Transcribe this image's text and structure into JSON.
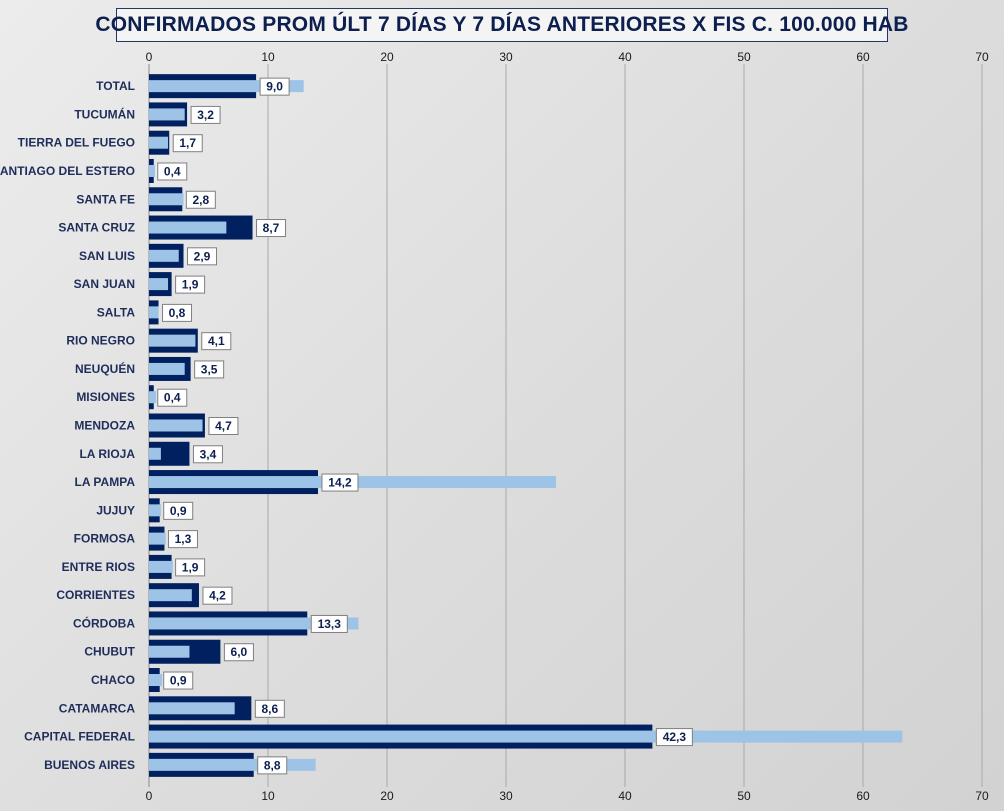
{
  "chart_data": {
    "type": "bar",
    "orientation": "horizontal",
    "title": "CONFIRMADOS PROM ÚLT 7 DÍAS Y 7 DÍAS ANTERIORES X FIS C. 100.000 HAB",
    "xlim": [
      0,
      70
    ],
    "xticks": [
      0,
      10,
      20,
      30,
      40,
      50,
      60,
      70
    ],
    "grid": true,
    "colors": {
      "anteriores": "#002060",
      "ultimos": "#9dc3e6",
      "label_text": "#0d1f4f"
    },
    "categories": [
      "TOTAL",
      "TUCUMÁN",
      "TIERRA  DEL FUEGO",
      "SANTIAGO  DEL ESTERO",
      "SANTA FE",
      "SANTA CRUZ",
      "SAN LUIS",
      "SAN JUAN",
      "SALTA",
      "RIO NEGRO",
      "NEUQUÉN",
      "MISIONES",
      "MENDOZA",
      "LA RIOJA",
      "LA PAMPA",
      "JUJUY",
      "FORMOSA",
      "ENTRE  RIOS",
      "CORRIENTES",
      "CÓRDOBA",
      "CHUBUT",
      "CHACO",
      "CATAMARCA",
      "CAPITAL FEDERAL",
      "BUENOS  AIRES"
    ],
    "series": [
      {
        "key": "anteriores",
        "values": [
          9.0,
          3.2,
          1.7,
          0.4,
          2.8,
          8.7,
          2.9,
          1.9,
          0.8,
          4.1,
          3.5,
          0.4,
          4.7,
          3.4,
          14.2,
          0.9,
          1.3,
          1.9,
          4.2,
          13.3,
          6.0,
          0.9,
          8.6,
          42.3,
          8.8
        ]
      },
      {
        "key": "ultimos",
        "values": [
          13.0,
          3.0,
          1.6,
          0.5,
          2.9,
          6.5,
          2.5,
          1.6,
          0.8,
          3.9,
          3.0,
          0.6,
          4.5,
          1.0,
          34.2,
          1.0,
          1.4,
          2.0,
          3.6,
          17.6,
          3.4,
          1.1,
          7.2,
          63.3,
          14.0
        ]
      }
    ],
    "data_labels": [
      "9,0",
      "3,2",
      "1,7",
      "0,4",
      "2,8",
      "8,7",
      "2,9",
      "1,9",
      "0,8",
      "4,1",
      "3,5",
      "0,4",
      "4,7",
      "3,4",
      "14,2",
      "0,9",
      "1,3",
      "1,9",
      "4,2",
      "13,3",
      "6,0",
      "0,9",
      "8,6",
      "42,3",
      "8,8"
    ]
  }
}
